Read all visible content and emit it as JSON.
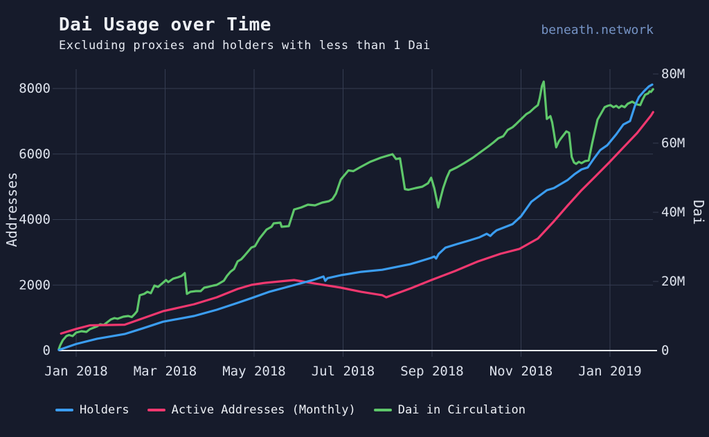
{
  "header": {
    "title": "Dai Usage over Time",
    "subtitle": "Excluding proxies and holders with less than 1 Dai",
    "brand": "beneath.network"
  },
  "colors": {
    "background": "#161B2B",
    "grid": "#353D52",
    "axis_line": "#E9ECF3",
    "tick_text": "#DDE2EC",
    "holders_blue": "#3B9DF0",
    "active_pink": "#F0386F",
    "dai_green": "#5EC76A",
    "brand_blue": "#7593C5"
  },
  "chart_data": {
    "type": "line",
    "title": "Dai Usage over Time",
    "subtitle": "Excluding proxies and holders with less than 1 Dai",
    "x_unit": "months since 2018-01-01 (0 = Jan 2018, 12 = Jan 2019)",
    "x_ticks": [
      {
        "m": 0,
        "label": "Jan 2018"
      },
      {
        "m": 2,
        "label": "Mar 2018"
      },
      {
        "m": 4,
        "label": "May 2018"
      },
      {
        "m": 6,
        "label": "Jul 2018"
      },
      {
        "m": 8,
        "label": "Sep 2018"
      },
      {
        "m": 10,
        "label": "Nov 2018"
      },
      {
        "m": 12,
        "label": "Jan 2019"
      }
    ],
    "y_left": {
      "title": "Addresses",
      "range": [
        0,
        8600
      ],
      "ticks": [
        {
          "v": 0,
          "label": "0"
        },
        {
          "v": 2000,
          "label": "2000"
        },
        {
          "v": 4000,
          "label": "4000"
        },
        {
          "v": 6000,
          "label": "6000"
        },
        {
          "v": 8000,
          "label": "8000"
        }
      ]
    },
    "y_right": {
      "title": "Dai",
      "unit": "millions",
      "range": [
        0,
        81.4
      ],
      "ticks": [
        {
          "v": 0,
          "label": "0"
        },
        {
          "v": 20,
          "label": "20M"
        },
        {
          "v": 40,
          "label": "40M"
        },
        {
          "v": 60,
          "label": "60M"
        },
        {
          "v": 80,
          "label": "80M"
        }
      ]
    },
    "grid": true,
    "legend_position": "bottom",
    "series": [
      {
        "name": "Dai in Circulation",
        "axis": "right",
        "color": "#5EC76A",
        "points": [
          [
            -0.39,
            0.4
          ],
          [
            -0.36,
            1.5
          ],
          [
            -0.3,
            3.0
          ],
          [
            -0.22,
            4.2
          ],
          [
            -0.16,
            4.5
          ],
          [
            -0.08,
            4.2
          ],
          [
            0,
            5.2
          ],
          [
            0.12,
            5.6
          ],
          [
            0.23,
            5.4
          ],
          [
            0.31,
            6.2
          ],
          [
            0.47,
            7.0
          ],
          [
            0.54,
            7.6
          ],
          [
            0.62,
            7.4
          ],
          [
            0.78,
            9.0
          ],
          [
            0.86,
            9.4
          ],
          [
            0.93,
            9.2
          ],
          [
            1.06,
            9.8
          ],
          [
            1.17,
            10.0
          ],
          [
            1.25,
            9.7
          ],
          [
            1.32,
            10.6
          ],
          [
            1.37,
            11.4
          ],
          [
            1.43,
            16.0
          ],
          [
            1.53,
            16.4
          ],
          [
            1.6,
            17.0
          ],
          [
            1.68,
            16.6
          ],
          [
            1.76,
            18.8
          ],
          [
            1.84,
            18.4
          ],
          [
            1.95,
            19.6
          ],
          [
            2.02,
            20.4
          ],
          [
            2.07,
            19.8
          ],
          [
            2.18,
            20.8
          ],
          [
            2.29,
            21.2
          ],
          [
            2.37,
            21.6
          ],
          [
            2.44,
            22.4
          ],
          [
            2.49,
            16.4
          ],
          [
            2.57,
            17.0
          ],
          [
            2.69,
            17.2
          ],
          [
            2.8,
            17.2
          ],
          [
            2.88,
            18.2
          ],
          [
            2.96,
            18.4
          ],
          [
            3.08,
            18.8
          ],
          [
            3.16,
            19.0
          ],
          [
            3.24,
            19.6
          ],
          [
            3.32,
            20.2
          ],
          [
            3.39,
            21.6
          ],
          [
            3.47,
            22.8
          ],
          [
            3.55,
            23.6
          ],
          [
            3.63,
            25.8
          ],
          [
            3.71,
            26.4
          ],
          [
            3.78,
            27.4
          ],
          [
            3.86,
            28.6
          ],
          [
            3.94,
            29.8
          ],
          [
            4.02,
            30.2
          ],
          [
            4.12,
            32.4
          ],
          [
            4.28,
            35.0
          ],
          [
            4.39,
            35.8
          ],
          [
            4.44,
            36.8
          ],
          [
            4.59,
            37.0
          ],
          [
            4.62,
            35.8
          ],
          [
            4.78,
            36.0
          ],
          [
            4.83,
            38.0
          ],
          [
            4.9,
            40.8
          ],
          [
            5.06,
            41.4
          ],
          [
            5.21,
            42.2
          ],
          [
            5.37,
            42.0
          ],
          [
            5.53,
            42.8
          ],
          [
            5.68,
            43.2
          ],
          [
            5.76,
            43.8
          ],
          [
            5.84,
            45.4
          ],
          [
            5.95,
            49.5
          ],
          [
            6.12,
            52.1
          ],
          [
            6.23,
            51.9
          ],
          [
            6.38,
            53.0
          ],
          [
            6.61,
            54.6
          ],
          [
            6.85,
            55.8
          ],
          [
            7.11,
            56.8
          ],
          [
            7.19,
            55.4
          ],
          [
            7.28,
            55.6
          ],
          [
            7.35,
            50.0
          ],
          [
            7.39,
            46.7
          ],
          [
            7.47,
            46.5
          ],
          [
            7.63,
            47.0
          ],
          [
            7.78,
            47.4
          ],
          [
            7.91,
            48.4
          ],
          [
            7.98,
            50.0
          ],
          [
            8.05,
            47.0
          ],
          [
            8.14,
            41.4
          ],
          [
            8.19,
            44.0
          ],
          [
            8.25,
            47.0
          ],
          [
            8.33,
            50.0
          ],
          [
            8.4,
            52.0
          ],
          [
            8.56,
            53.0
          ],
          [
            8.72,
            54.2
          ],
          [
            8.92,
            55.8
          ],
          [
            9.11,
            57.6
          ],
          [
            9.26,
            59.0
          ],
          [
            9.38,
            60.2
          ],
          [
            9.49,
            61.4
          ],
          [
            9.6,
            62.0
          ],
          [
            9.7,
            63.8
          ],
          [
            9.81,
            64.6
          ],
          [
            9.88,
            65.4
          ],
          [
            9.96,
            66.4
          ],
          [
            10.12,
            68.4
          ],
          [
            10.2,
            69.0
          ],
          [
            10.3,
            70.2
          ],
          [
            10.38,
            71.0
          ],
          [
            10.42,
            73.0
          ],
          [
            10.47,
            76.5
          ],
          [
            10.51,
            77.8
          ],
          [
            10.55,
            72.0
          ],
          [
            10.58,
            67.0
          ],
          [
            10.66,
            67.8
          ],
          [
            10.7,
            66.0
          ],
          [
            10.74,
            63.0
          ],
          [
            10.79,
            58.8
          ],
          [
            10.85,
            60.5
          ],
          [
            10.9,
            61.4
          ],
          [
            11.02,
            63.4
          ],
          [
            11.08,
            63.0
          ],
          [
            11.14,
            56.0
          ],
          [
            11.19,
            54.4
          ],
          [
            11.24,
            54.0
          ],
          [
            11.3,
            54.6
          ],
          [
            11.36,
            54.2
          ],
          [
            11.44,
            54.8
          ],
          [
            11.52,
            55.0
          ],
          [
            11.6,
            60.0
          ],
          [
            11.67,
            64.0
          ],
          [
            11.72,
            66.8
          ],
          [
            11.8,
            68.6
          ],
          [
            11.88,
            70.4
          ],
          [
            11.95,
            70.8
          ],
          [
            12.01,
            71.0
          ],
          [
            12.08,
            70.4
          ],
          [
            12.14,
            70.8
          ],
          [
            12.2,
            70.2
          ],
          [
            12.26,
            70.8
          ],
          [
            12.33,
            70.4
          ],
          [
            12.4,
            71.4
          ],
          [
            12.5,
            72.0
          ],
          [
            12.55,
            71.6
          ],
          [
            12.61,
            71.2
          ],
          [
            12.68,
            71.0
          ],
          [
            12.73,
            72.5
          ],
          [
            12.79,
            74.0
          ],
          [
            12.86,
            74.4
          ],
          [
            12.89,
            75.0
          ],
          [
            12.92,
            74.8
          ],
          [
            12.97,
            75.6
          ]
        ]
      },
      {
        "name": "Active Addresses (Monthly)",
        "axis": "left",
        "color": "#F0386F",
        "points": [
          [
            -0.34,
            520
          ],
          [
            0,
            660
          ],
          [
            0.31,
            770
          ],
          [
            1.09,
            790
          ],
          [
            1.95,
            1200
          ],
          [
            2.65,
            1415
          ],
          [
            3.16,
            1625
          ],
          [
            3.63,
            1880
          ],
          [
            3.94,
            2005
          ],
          [
            4.2,
            2060
          ],
          [
            4.9,
            2152
          ],
          [
            5.37,
            2046
          ],
          [
            5.95,
            1920
          ],
          [
            6.41,
            1793
          ],
          [
            6.88,
            1690
          ],
          [
            6.97,
            1625
          ],
          [
            7.52,
            1900
          ],
          [
            7.98,
            2150
          ],
          [
            8.51,
            2425
          ],
          [
            9.03,
            2720
          ],
          [
            9.54,
            2955
          ],
          [
            9.96,
            3100
          ],
          [
            10.38,
            3420
          ],
          [
            10.74,
            3945
          ],
          [
            11.05,
            4430
          ],
          [
            11.36,
            4895
          ],
          [
            11.67,
            5315
          ],
          [
            11.98,
            5740
          ],
          [
            12.3,
            6200
          ],
          [
            12.61,
            6640
          ],
          [
            12.92,
            7170
          ],
          [
            12.97,
            7280
          ]
        ]
      },
      {
        "name": "Holders",
        "axis": "left",
        "color": "#3B9DF0",
        "points": [
          [
            -0.39,
            20
          ],
          [
            0,
            200
          ],
          [
            0.47,
            360
          ],
          [
            1.09,
            505
          ],
          [
            1.5,
            680
          ],
          [
            1.95,
            880
          ],
          [
            2.65,
            1055
          ],
          [
            3.16,
            1245
          ],
          [
            3.63,
            1456
          ],
          [
            3.94,
            1600
          ],
          [
            4.33,
            1790
          ],
          [
            4.86,
            1985
          ],
          [
            5.32,
            2150
          ],
          [
            5.56,
            2260
          ],
          [
            5.6,
            2130
          ],
          [
            5.65,
            2210
          ],
          [
            5.95,
            2300
          ],
          [
            6.41,
            2405
          ],
          [
            6.88,
            2465
          ],
          [
            7.52,
            2640
          ],
          [
            7.98,
            2830
          ],
          [
            8.05,
            2870
          ],
          [
            8.09,
            2810
          ],
          [
            8.15,
            2950
          ],
          [
            8.3,
            3140
          ],
          [
            8.56,
            3250
          ],
          [
            8.82,
            3355
          ],
          [
            9.07,
            3460
          ],
          [
            9.23,
            3565
          ],
          [
            9.31,
            3500
          ],
          [
            9.37,
            3580
          ],
          [
            9.45,
            3670
          ],
          [
            9.81,
            3860
          ],
          [
            10.0,
            4100
          ],
          [
            10.23,
            4540
          ],
          [
            10.58,
            4895
          ],
          [
            10.74,
            4960
          ],
          [
            11.05,
            5210
          ],
          [
            11.2,
            5380
          ],
          [
            11.36,
            5530
          ],
          [
            11.5,
            5590
          ],
          [
            11.63,
            5845
          ],
          [
            11.78,
            6120
          ],
          [
            11.94,
            6270
          ],
          [
            12.14,
            6600
          ],
          [
            12.3,
            6900
          ],
          [
            12.45,
            7005
          ],
          [
            12.56,
            7470
          ],
          [
            12.65,
            7740
          ],
          [
            12.76,
            7910
          ],
          [
            12.87,
            8060
          ],
          [
            12.95,
            8120
          ]
        ]
      }
    ],
    "legend_order": [
      "Holders",
      "Active Addresses (Monthly)",
      "Dai in Circulation"
    ]
  }
}
